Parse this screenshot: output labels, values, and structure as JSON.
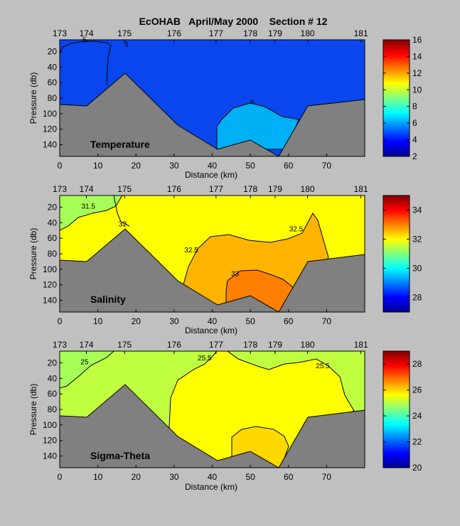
{
  "title": "EcOHAB   April/May 2000    Section # 12",
  "chart_data": [
    {
      "type": "heatmap",
      "panel_label": "Temperature",
      "xlabel": "Distance (km)",
      "ylabel": "Pressure (db)",
      "xlim": [
        0,
        80
      ],
      "ylim": [
        155,
        5
      ],
      "x_ticks": [
        "0",
        "10",
        "20",
        "30",
        "40",
        "50",
        "60",
        "70"
      ],
      "y_ticks": [
        "20",
        "40",
        "60",
        "80",
        "100",
        "120",
        "140"
      ],
      "stations": [
        {
          "label": "173",
          "km": 0
        },
        {
          "label": "174",
          "km": 7
        },
        {
          "label": "175",
          "km": 17
        },
        {
          "label": "176",
          "km": 30
        },
        {
          "label": "177",
          "km": 41
        },
        {
          "label": "178",
          "km": 50
        },
        {
          "label": "179",
          "km": 56.5
        },
        {
          "label": "180",
          "km": 65
        },
        {
          "label": "181",
          "km": 79
        }
      ],
      "colorbar": {
        "min": 2,
        "max": 16,
        "ticks": [
          "2",
          "4",
          "6",
          "8",
          "10",
          "12",
          "14",
          "16"
        ]
      },
      "contour_labels": [
        {
          "text": "5",
          "km": 6.5,
          "db": 8
        },
        {
          "text": "5",
          "km": 17.5,
          "db": 14
        },
        {
          "text": "6",
          "km": 50.5,
          "db": 88
        }
      ]
    },
    {
      "type": "heatmap",
      "panel_label": "Salinity",
      "xlabel": "Distance (km)",
      "ylabel": "Pressure (db)",
      "xlim": [
        0,
        80
      ],
      "ylim": [
        155,
        5
      ],
      "x_ticks": [
        "0",
        "10",
        "20",
        "30",
        "40",
        "50",
        "60",
        "70"
      ],
      "y_ticks": [
        "20",
        "40",
        "60",
        "80",
        "100",
        "120",
        "140"
      ],
      "stations": [
        {
          "label": "173",
          "km": 0
        },
        {
          "label": "174",
          "km": 7
        },
        {
          "label": "175",
          "km": 17
        },
        {
          "label": "176",
          "km": 30
        },
        {
          "label": "177",
          "km": 41
        },
        {
          "label": "178",
          "km": 50
        },
        {
          "label": "179",
          "km": 56.5
        },
        {
          "label": "180",
          "km": 65
        },
        {
          "label": "181",
          "km": 79
        }
      ],
      "colorbar": {
        "min": 27,
        "max": 35,
        "ticks": [
          "28",
          "30",
          "32",
          "34"
        ]
      },
      "contour_labels": [
        {
          "text": "31.5",
          "km": 7.5,
          "db": 22
        },
        {
          "text": "32",
          "km": 16.5,
          "db": 45
        },
        {
          "text": "32.5",
          "km": 34.5,
          "db": 78
        },
        {
          "text": "32.5",
          "km": 62,
          "db": 51
        },
        {
          "text": "33",
          "km": 46,
          "db": 109
        }
      ]
    },
    {
      "type": "heatmap",
      "panel_label": "Sigma-Theta",
      "xlabel": "Distance (km)",
      "ylabel": "Pressure (db)",
      "xlim": [
        0,
        80
      ],
      "ylim": [
        155,
        5
      ],
      "x_ticks": [
        "0",
        "10",
        "20",
        "30",
        "40",
        "50",
        "60",
        "70"
      ],
      "y_ticks": [
        "20",
        "40",
        "60",
        "80",
        "100",
        "120",
        "140"
      ],
      "stations": [
        {
          "label": "173",
          "km": 0
        },
        {
          "label": "174",
          "km": 7
        },
        {
          "label": "175",
          "km": 17
        },
        {
          "label": "176",
          "km": 30
        },
        {
          "label": "177",
          "km": 41
        },
        {
          "label": "178",
          "km": 50
        },
        {
          "label": "179",
          "km": 56.5
        },
        {
          "label": "180",
          "km": 65
        },
        {
          "label": "181",
          "km": 79
        }
      ],
      "colorbar": {
        "min": 20,
        "max": 29,
        "ticks": [
          "20",
          "22",
          "24",
          "26",
          "28"
        ]
      },
      "contour_labels": [
        {
          "text": "25",
          "km": 6.5,
          "db": 22
        },
        {
          "text": "25.5",
          "km": 38,
          "db": 17
        },
        {
          "text": "25.5",
          "km": 69,
          "db": 27
        }
      ]
    }
  ]
}
